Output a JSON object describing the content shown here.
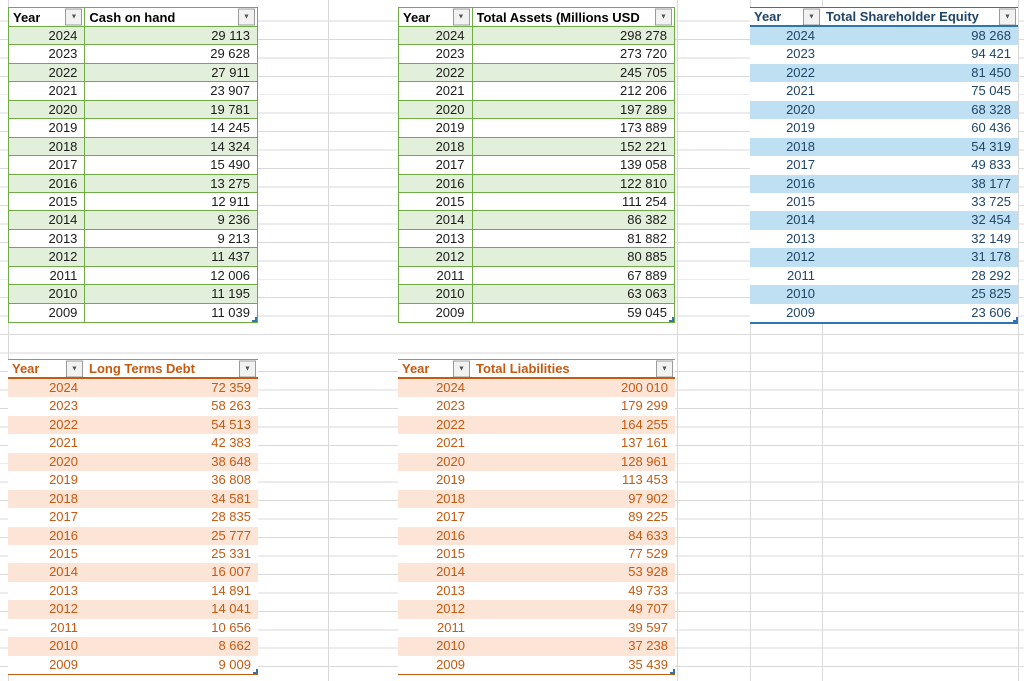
{
  "app": {
    "type": "spreadsheet-grid"
  },
  "filter_icon": "▼",
  "colors": {
    "green_accent": "#6FAC46",
    "green_band": "#E2EFDA",
    "blue_accent": "#2E75B6",
    "blue_text": "#1F4568",
    "blue_band": "#BFE0F2",
    "orange_accent": "#C55A11",
    "orange_band": "#FCE4D6",
    "gridline": "#D9D9D9"
  },
  "tables": [
    {
      "id": "cash-on-hand",
      "style": "green",
      "columns": [
        "Year",
        "Cash on hand"
      ],
      "rows": [
        [
          "2024",
          "29 113"
        ],
        [
          "2023",
          "29 628"
        ],
        [
          "2022",
          "27 911"
        ],
        [
          "2021",
          "23 907"
        ],
        [
          "2020",
          "19 781"
        ],
        [
          "2019",
          "14 245"
        ],
        [
          "2018",
          "14 324"
        ],
        [
          "2017",
          "15 490"
        ],
        [
          "2016",
          "13 275"
        ],
        [
          "2015",
          "12 911"
        ],
        [
          "2014",
          "9 236"
        ],
        [
          "2013",
          "9 213"
        ],
        [
          "2012",
          "11 437"
        ],
        [
          "2011",
          "12 006"
        ],
        [
          "2010",
          "11 195"
        ],
        [
          "2009",
          "11 039"
        ]
      ]
    },
    {
      "id": "total-assets",
      "style": "green",
      "columns": [
        "Year",
        "Total Assets (Millions USD"
      ],
      "rows": [
        [
          "2024",
          "298 278"
        ],
        [
          "2023",
          "273 720"
        ],
        [
          "2022",
          "245 705"
        ],
        [
          "2021",
          "212 206"
        ],
        [
          "2020",
          "197 289"
        ],
        [
          "2019",
          "173 889"
        ],
        [
          "2018",
          "152 221"
        ],
        [
          "2017",
          "139 058"
        ],
        [
          "2016",
          "122 810"
        ],
        [
          "2015",
          "111 254"
        ],
        [
          "2014",
          "86 382"
        ],
        [
          "2013",
          "81 882"
        ],
        [
          "2012",
          "80 885"
        ],
        [
          "2011",
          "67 889"
        ],
        [
          "2010",
          "63 063"
        ],
        [
          "2009",
          "59 045"
        ]
      ]
    },
    {
      "id": "total-shareholder-equity",
      "style": "blue",
      "columns": [
        "Year",
        "Total Shareholder Equity"
      ],
      "rows": [
        [
          "2024",
          "98 268"
        ],
        [
          "2023",
          "94 421"
        ],
        [
          "2022",
          "81 450"
        ],
        [
          "2021",
          "75 045"
        ],
        [
          "2020",
          "68 328"
        ],
        [
          "2019",
          "60 436"
        ],
        [
          "2018",
          "54 319"
        ],
        [
          "2017",
          "49 833"
        ],
        [
          "2016",
          "38 177"
        ],
        [
          "2015",
          "33 725"
        ],
        [
          "2014",
          "32 454"
        ],
        [
          "2013",
          "32 149"
        ],
        [
          "2012",
          "31 178"
        ],
        [
          "2011",
          "28 292"
        ],
        [
          "2010",
          "25 825"
        ],
        [
          "2009",
          "23 606"
        ]
      ]
    },
    {
      "id": "long-terms-debt",
      "style": "orange",
      "columns": [
        "Year",
        "Long Terms Debt"
      ],
      "rows": [
        [
          "2024",
          "72 359"
        ],
        [
          "2023",
          "58 263"
        ],
        [
          "2022",
          "54 513"
        ],
        [
          "2021",
          "42 383"
        ],
        [
          "2020",
          "38 648"
        ],
        [
          "2019",
          "36 808"
        ],
        [
          "2018",
          "34 581"
        ],
        [
          "2017",
          "28 835"
        ],
        [
          "2016",
          "25 777"
        ],
        [
          "2015",
          "25 331"
        ],
        [
          "2014",
          "16 007"
        ],
        [
          "2013",
          "14 891"
        ],
        [
          "2012",
          "14 041"
        ],
        [
          "2011",
          "10 656"
        ],
        [
          "2010",
          "8 662"
        ],
        [
          "2009",
          "9 009"
        ]
      ]
    },
    {
      "id": "total-liabilities",
      "style": "orange",
      "columns": [
        "Year",
        "Total Liabilities"
      ],
      "rows": [
        [
          "2024",
          "200 010"
        ],
        [
          "2023",
          "179 299"
        ],
        [
          "2022",
          "164 255"
        ],
        [
          "2021",
          "137 161"
        ],
        [
          "2020",
          "128 961"
        ],
        [
          "2019",
          "113 453"
        ],
        [
          "2018",
          "97 902"
        ],
        [
          "2017",
          "89 225"
        ],
        [
          "2016",
          "84 633"
        ],
        [
          "2015",
          "77 529"
        ],
        [
          "2014",
          "53 928"
        ],
        [
          "2013",
          "49 733"
        ],
        [
          "2012",
          "49 707"
        ],
        [
          "2011",
          "39 597"
        ],
        [
          "2010",
          "37 238"
        ],
        [
          "2009",
          "35 439"
        ]
      ]
    }
  ]
}
